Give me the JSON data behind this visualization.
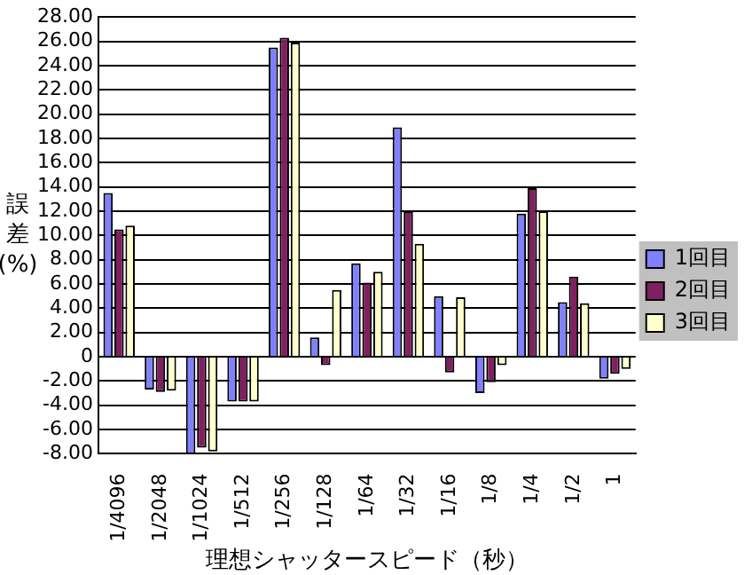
{
  "chart_data": {
    "type": "bar",
    "xlabel": "理想シャッタースピード（秒）",
    "ylabel": "誤差(%)",
    "categories": [
      "1/4096",
      "1/2048",
      "1/1024",
      "1/512",
      "1/256",
      "1/128",
      "1/64",
      "1/32",
      "1/16",
      "1/8",
      "1/4",
      "1/2",
      "1"
    ],
    "series": [
      {
        "name": "1回目",
        "color": "#8080ff",
        "values": [
          13.5,
          -2.7,
          -8.0,
          -3.7,
          25.5,
          1.6,
          7.7,
          18.9,
          5.0,
          -3.0,
          11.8,
          4.5,
          -1.8
        ]
      },
      {
        "name": "2回目",
        "color": "#802060",
        "values": [
          10.5,
          -2.9,
          -7.5,
          -3.7,
          26.3,
          -0.7,
          6.1,
          12.0,
          -1.3,
          -2.1,
          13.9,
          6.6,
          -1.4
        ]
      },
      {
        "name": "3回目",
        "color": "#ffffcc",
        "values": [
          10.8,
          -2.8,
          -7.8,
          -3.7,
          25.9,
          5.5,
          7.0,
          9.3,
          4.9,
          -0.7,
          12.0,
          4.4,
          -1.0
        ]
      }
    ],
    "ylim": [
      -8,
      28
    ],
    "yticks": [
      {
        "value": -8,
        "label": "-8.00"
      },
      {
        "value": -6,
        "label": "-6.00"
      },
      {
        "value": -4,
        "label": "-4.00"
      },
      {
        "value": -2,
        "label": "-2.00"
      },
      0,
      {
        "value": 2,
        "label": "2.00"
      },
      {
        "value": 4,
        "label": "4.00"
      },
      {
        "value": 6,
        "label": "6.00"
      },
      {
        "value": 8,
        "label": "8.00"
      },
      {
        "value": 10,
        "label": "10.00"
      },
      {
        "value": 12,
        "label": "12.00"
      },
      {
        "value": 14,
        "label": "14.00"
      },
      {
        "value": 16,
        "label": "16.00"
      },
      {
        "value": 18,
        "label": "18.00"
      },
      {
        "value": 20,
        "label": "20.00"
      },
      {
        "value": 22,
        "label": "22.00"
      },
      {
        "value": 24,
        "label": "24.00"
      },
      {
        "value": 26,
        "label": "26.00"
      },
      {
        "value": 28,
        "label": "28.00"
      }
    ],
    "grid": "y",
    "legend": "right"
  }
}
